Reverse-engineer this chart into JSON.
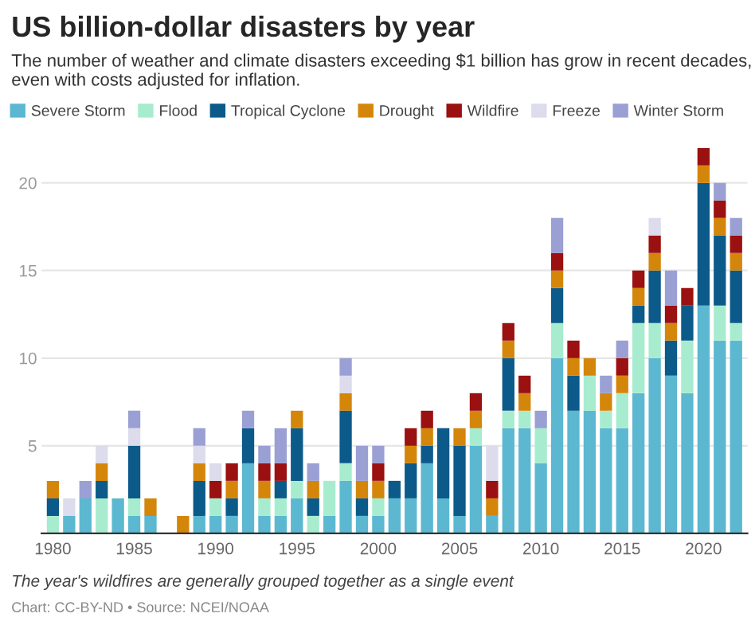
{
  "chart_data": {
    "type": "bar",
    "stacked": true,
    "title": "US billion-dollar disasters by year",
    "subtitle": "The number of weather and climate disasters exceeding $1 billion has grow in recent decades, even with costs adjusted for inflation.",
    "categories": [
      "1980",
      null,
      null,
      null,
      null,
      "1985",
      null,
      null,
      null,
      null,
      "1990",
      null,
      null,
      null,
      null,
      "1995",
      null,
      null,
      null,
      null,
      "2000",
      null,
      null,
      null,
      null,
      "2005",
      null,
      null,
      null,
      null,
      "2010",
      null,
      null,
      null,
      null,
      "2015",
      null,
      null,
      null,
      null,
      "2020",
      null,
      null
    ],
    "series": [
      {
        "name": "Severe Storm",
        "color": "#5bb8d0",
        "values": [
          0,
          1,
          2,
          0,
          2,
          1,
          1,
          0,
          0,
          1,
          1,
          1,
          4,
          1,
          1,
          2,
          0,
          1,
          3,
          1,
          1,
          2,
          2,
          4,
          2,
          1,
          5,
          1,
          6,
          6,
          4,
          10,
          7,
          7,
          6,
          6,
          8,
          10,
          9,
          8,
          13,
          11,
          11
        ]
      },
      {
        "name": "Flood",
        "color": "#a8ecd0",
        "values": [
          1,
          0,
          0,
          2,
          0,
          1,
          0,
          0,
          0,
          0,
          1,
          0,
          0,
          1,
          1,
          1,
          1,
          2,
          1,
          0,
          1,
          0,
          0,
          0,
          0,
          0,
          1,
          0,
          1,
          1,
          2,
          2,
          0,
          2,
          1,
          2,
          4,
          2,
          0,
          3,
          0,
          2,
          1
        ]
      },
      {
        "name": "Tropical Cyclone",
        "color": "#0b5a8a",
        "values": [
          1,
          0,
          0,
          1,
          0,
          3,
          0,
          0,
          0,
          2,
          0,
          1,
          2,
          0,
          1,
          3,
          1,
          0,
          3,
          1,
          0,
          1,
          2,
          1,
          4,
          4,
          0,
          0,
          3,
          0,
          0,
          2,
          2,
          0,
          0,
          0,
          1,
          3,
          2,
          2,
          7,
          4,
          3
        ]
      },
      {
        "name": "Drought",
        "color": "#d4860b",
        "values": [
          1,
          0,
          0,
          1,
          0,
          0,
          1,
          0,
          1,
          1,
          0,
          1,
          0,
          1,
          0,
          1,
          1,
          0,
          1,
          1,
          1,
          0,
          1,
          1,
          0,
          1,
          1,
          1,
          1,
          1,
          0,
          1,
          1,
          1,
          1,
          1,
          1,
          1,
          1,
          0,
          1,
          1,
          1
        ]
      },
      {
        "name": "Wildfire",
        "color": "#9b1010",
        "values": [
          0,
          0,
          0,
          0,
          0,
          0,
          0,
          0,
          0,
          0,
          1,
          1,
          0,
          1,
          1,
          0,
          0,
          0,
          0,
          0,
          1,
          0,
          1,
          1,
          0,
          0,
          1,
          1,
          1,
          1,
          0,
          1,
          1,
          0,
          0,
          1,
          1,
          1,
          1,
          1,
          1,
          1,
          1
        ]
      },
      {
        "name": "Freeze",
        "color": "#dcdcec",
        "values": [
          0,
          1,
          0,
          1,
          0,
          1,
          0,
          0,
          0,
          1,
          1,
          0,
          0,
          0,
          0,
          0,
          0,
          0,
          1,
          0,
          0,
          0,
          0,
          0,
          0,
          0,
          0,
          2,
          0,
          0,
          0,
          0,
          0,
          0,
          0,
          0,
          0,
          1,
          0,
          0,
          0,
          0,
          0
        ]
      },
      {
        "name": "Winter Storm",
        "color": "#9aa0d4",
        "values": [
          0,
          0,
          1,
          0,
          0,
          1,
          0,
          0,
          0,
          1,
          0,
          0,
          1,
          1,
          2,
          0,
          1,
          0,
          1,
          2,
          1,
          0,
          0,
          0,
          0,
          0,
          0,
          0,
          0,
          0,
          1,
          2,
          0,
          0,
          1,
          1,
          0,
          0,
          2,
          0,
          0,
          1,
          1
        ]
      }
    ],
    "ylim": [
      0,
      22
    ],
    "yticks": [
      5,
      10,
      15,
      20
    ],
    "grid": "y",
    "legend": "top",
    "annotations": [
      "The year's wildfires are generally grouped together as a single event",
      "Chart: CC-BY-ND • Source: NCEI/NOAA"
    ]
  }
}
